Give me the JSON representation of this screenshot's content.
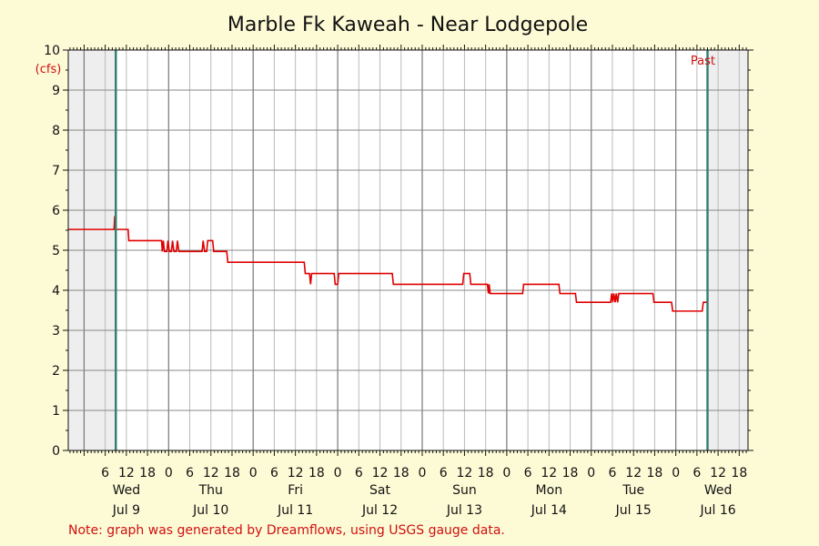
{
  "chart_data": {
    "type": "line",
    "title": "Marble Fk Kaweah - Near Lodgepole",
    "ylabel": "(cfs)",
    "ylim": [
      0,
      10
    ],
    "yticks": [
      0,
      1,
      2,
      3,
      4,
      5,
      6,
      7,
      8,
      9,
      10
    ],
    "x_unit": "hours from Jul 9 00:00",
    "xlim": [
      -4.5,
      188.5
    ],
    "past_window": [
      9,
      177
    ],
    "past_label": "Past",
    "hour_labels": [
      "6",
      "12",
      "18",
      "0",
      "6",
      "12",
      "18",
      "0",
      "6",
      "12",
      "18",
      "0",
      "6",
      "12",
      "18",
      "0",
      "6",
      "12",
      "18",
      "0",
      "6",
      "12",
      "18",
      "0",
      "6",
      "12",
      "18",
      "0",
      "6",
      "12",
      "18"
    ],
    "days": [
      {
        "name": "Wed",
        "date": "Jul 9"
      },
      {
        "name": "Thu",
        "date": "Jul 10"
      },
      {
        "name": "Fri",
        "date": "Jul 11"
      },
      {
        "name": "Sat",
        "date": "Jul 12"
      },
      {
        "name": "Sun",
        "date": "Jul 13"
      },
      {
        "name": "Mon",
        "date": "Jul 14"
      },
      {
        "name": "Tue",
        "date": "Jul 15"
      },
      {
        "name": "Wed",
        "date": "Jul 16"
      }
    ],
    "grid": true,
    "series": [
      {
        "color": "#e00000",
        "points": [
          [
            -4.5,
            5.52
          ],
          [
            8.5,
            5.52
          ],
          [
            8.7,
            5.85
          ],
          [
            9.0,
            5.52
          ],
          [
            12.5,
            5.52
          ],
          [
            12.7,
            5.24
          ],
          [
            22.0,
            5.24
          ],
          [
            22.2,
            4.97
          ],
          [
            22.5,
            5.24
          ],
          [
            22.8,
            4.97
          ],
          [
            23.5,
            4.97
          ],
          [
            23.8,
            5.24
          ],
          [
            24.2,
            4.97
          ],
          [
            24.8,
            4.97
          ],
          [
            25.1,
            5.24
          ],
          [
            25.5,
            4.97
          ],
          [
            26.2,
            4.97
          ],
          [
            26.5,
            5.24
          ],
          [
            26.9,
            4.97
          ],
          [
            33.5,
            4.97
          ],
          [
            33.8,
            5.24
          ],
          [
            34.2,
            4.97
          ],
          [
            34.8,
            4.97
          ],
          [
            35.1,
            5.24
          ],
          [
            36.5,
            5.24
          ],
          [
            36.8,
            4.97
          ],
          [
            40.5,
            4.97
          ],
          [
            40.8,
            4.7
          ],
          [
            62.5,
            4.7
          ],
          [
            62.8,
            4.42
          ],
          [
            64.0,
            4.42
          ],
          [
            64.3,
            4.15
          ],
          [
            64.6,
            4.42
          ],
          [
            71.0,
            4.42
          ],
          [
            71.3,
            4.15
          ],
          [
            72.0,
            4.15
          ],
          [
            72.3,
            4.42
          ],
          [
            87.5,
            4.42
          ],
          [
            87.8,
            4.15
          ],
          [
            107.5,
            4.15
          ],
          [
            107.8,
            4.42
          ],
          [
            109.5,
            4.42
          ],
          [
            109.8,
            4.15
          ],
          [
            114.5,
            4.15
          ],
          [
            114.8,
            3.92
          ],
          [
            115.0,
            4.15
          ],
          [
            115.3,
            3.92
          ],
          [
            124.5,
            3.92
          ],
          [
            124.8,
            4.15
          ],
          [
            134.8,
            4.15
          ],
          [
            135.1,
            3.92
          ],
          [
            139.5,
            3.92
          ],
          [
            139.8,
            3.7
          ],
          [
            149.5,
            3.7
          ],
          [
            149.8,
            3.92
          ],
          [
            150.1,
            3.7
          ],
          [
            150.4,
            3.92
          ],
          [
            150.8,
            3.7
          ],
          [
            151.1,
            3.92
          ],
          [
            151.5,
            3.7
          ],
          [
            151.8,
            3.92
          ],
          [
            161.5,
            3.92
          ],
          [
            161.8,
            3.7
          ],
          [
            166.8,
            3.7
          ],
          [
            167.1,
            3.48
          ],
          [
            175.5,
            3.48
          ],
          [
            175.8,
            3.7
          ],
          [
            177.0,
            3.7
          ]
        ]
      }
    ],
    "note": "Note: graph was generated by Dreamflows, using USGS gauge data."
  }
}
